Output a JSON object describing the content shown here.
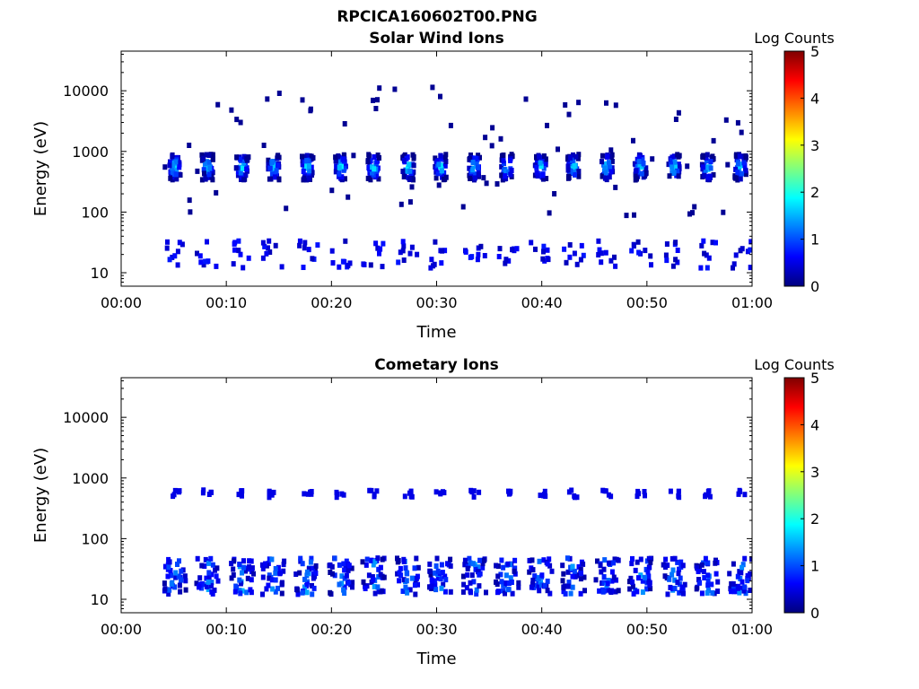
{
  "figure": {
    "filename": "RPCICA160602T00.PNG"
  },
  "chart_data": [
    {
      "type": "heatmap",
      "title": "Solar Wind Ions",
      "xlabel": "Time",
      "ylabel": "Energy (eV)",
      "x_ticks": [
        "00:00",
        "00:10",
        "00:20",
        "00:30",
        "00:40",
        "00:50",
        "01:00"
      ],
      "xlim_minutes": [
        0,
        60
      ],
      "y_scale": "log",
      "y_ticks": [
        {
          "value": 10,
          "label": "10"
        },
        {
          "value": 100,
          "label": "100"
        },
        {
          "value": 1000,
          "label": "1000"
        },
        {
          "value": 10000,
          "label": "10000"
        }
      ],
      "ylim_eV": [
        6,
        45000
      ],
      "colorbar": {
        "label": "Log Counts",
        "range": [
          0,
          5
        ],
        "ticks": [
          "0",
          "1",
          "2",
          "3",
          "4",
          "5"
        ],
        "colormap": "jet"
      },
      "colormap_stops": [
        "#00007f",
        "#0000ff",
        "#007fff",
        "#00ffff",
        "#7fff7f",
        "#ffff00",
        "#ff7f00",
        "#ff0000",
        "#7f0000"
      ],
      "features": {
        "peak_energy_eV": 550,
        "peak_log_counts": 2.0,
        "burst_times_minutes": [
          5.1,
          8.2,
          11.5,
          14.5,
          17.7,
          20.9,
          24.0,
          27.3,
          30.4,
          33.6,
          36.7,
          39.9,
          43.0,
          46.2,
          49.4,
          52.6,
          55.8,
          58.9
        ],
        "low_energy_band_eV": [
          12,
          30
        ],
        "low_energy_log_counts": 0.5
      }
    },
    {
      "type": "heatmap",
      "title": "Cometary Ions",
      "xlabel": "Time",
      "ylabel": "Energy (eV)",
      "x_ticks": [
        "00:00",
        "00:10",
        "00:20",
        "00:30",
        "00:40",
        "00:50",
        "01:00"
      ],
      "xlim_minutes": [
        0,
        60
      ],
      "y_scale": "log",
      "y_ticks": [
        {
          "value": 10,
          "label": "10"
        },
        {
          "value": 100,
          "label": "100"
        },
        {
          "value": 1000,
          "label": "1000"
        },
        {
          "value": 10000,
          "label": "10000"
        }
      ],
      "ylim_eV": [
        6,
        45000
      ],
      "colorbar": {
        "label": "Log Counts",
        "range": [
          0,
          5
        ],
        "ticks": [
          "0",
          "1",
          "2",
          "3",
          "4",
          "5"
        ],
        "colormap": "jet"
      },
      "colormap_stops": [
        "#00007f",
        "#0000ff",
        "#007fff",
        "#00ffff",
        "#7fff7f",
        "#ffff00",
        "#ff7f00",
        "#ff0000",
        "#7f0000"
      ],
      "features": {
        "high_band_energy_eV": 550,
        "high_band_log_counts": 0.5,
        "burst_times_minutes": [
          5.1,
          8.2,
          11.5,
          14.5,
          17.7,
          20.9,
          24.0,
          27.3,
          30.4,
          33.6,
          36.7,
          39.9,
          43.0,
          46.2,
          49.4,
          52.6,
          55.8,
          58.9
        ],
        "low_energy_band_eV": [
          12,
          45
        ],
        "low_energy_peak_log_counts": 1.6
      }
    }
  ]
}
